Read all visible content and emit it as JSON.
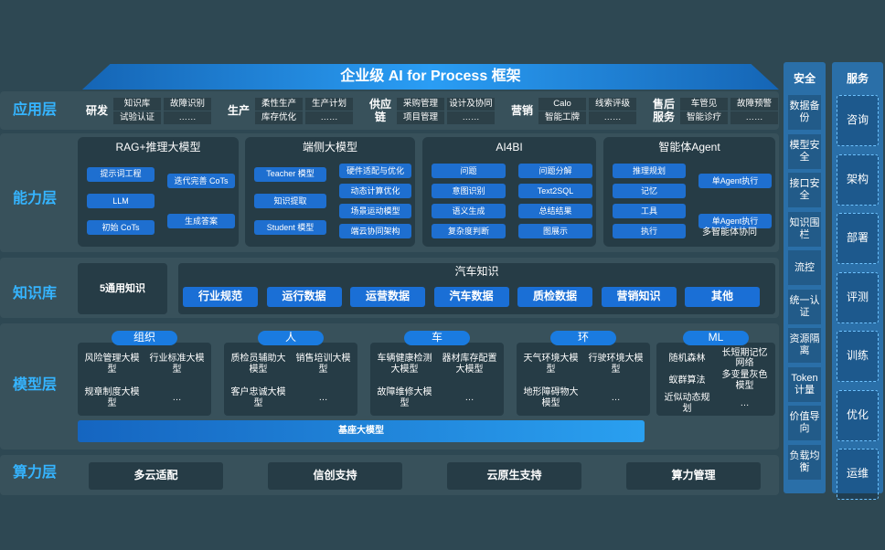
{
  "title": "企业级 AI for Process 框架",
  "layers": [
    "应用层",
    "能力层",
    "知识库",
    "模型层",
    "算力层"
  ],
  "application": [
    {
      "name": "研发",
      "items": [
        "知识库",
        "故障识别",
        "试验认证",
        "……"
      ]
    },
    {
      "name": "生产",
      "items": [
        "柔性生产",
        "生产计划",
        "库存优化",
        "……"
      ]
    },
    {
      "name": "供应链",
      "items": [
        "采购管理",
        "设计及协同",
        "项目管理",
        "……"
      ]
    },
    {
      "name": "营销",
      "items": [
        "Calo",
        "线索评级",
        "智能工牌",
        "……"
      ]
    },
    {
      "name": "售后服务",
      "items": [
        "车管见",
        "故障预警",
        "智能诊疗",
        "……"
      ]
    }
  ],
  "capability": [
    {
      "title": "RAG+推理大模型",
      "columns": [
        [
          "提示词工程",
          "LLM",
          "初始 CoTs"
        ],
        [
          "迭代完善 CoTs",
          "生成答案"
        ]
      ]
    },
    {
      "title": "端侧大模型",
      "columns": [
        [
          "Teacher 模型",
          "知识提取",
          "Student 模型"
        ],
        [
          "硬件适配与优化",
          "动态计算优化",
          "场景运动模型",
          "端云协同架构"
        ]
      ]
    },
    {
      "title": "AI4BI",
      "columns": [
        [
          "问题",
          "意图识别",
          "语义生成",
          "复杂度判断"
        ],
        [
          "问题分解",
          "Text2SQL",
          "总结结果",
          "图展示"
        ]
      ]
    },
    {
      "title": "智能体Agent",
      "columns": [
        [
          "推理规划",
          "记忆",
          "工具",
          "执行"
        ],
        [
          "单Agent执行",
          "单Agent执行"
        ]
      ],
      "footer": "多智能体协同"
    }
  ],
  "knowledge": {
    "general": "5通用知识",
    "auto_title": "汽车知识",
    "items": [
      "行业规范",
      "运行数据",
      "运营数据",
      "汽车数据",
      "质检数据",
      "营销知识",
      "其他"
    ]
  },
  "models": {
    "groups": [
      {
        "name": "组织",
        "items": [
          "风险管理大模型",
          "行业标准大模型",
          "规章制度大模型",
          "…"
        ]
      },
      {
        "name": "人",
        "items": [
          "质检员辅助大模型",
          "销售培训大模型",
          "客户忠诚大模型",
          "…"
        ]
      },
      {
        "name": "车",
        "items": [
          "车辆健康检测大模型",
          "器材库存配置大模型",
          "故障维修大模型",
          "…"
        ]
      },
      {
        "name": "环",
        "items": [
          "天气环境大模型",
          "行驶环境大模型",
          "地形障碍物大模型",
          "…"
        ]
      },
      {
        "name": "ML",
        "items": [
          "随机森林",
          "长短期记忆网络",
          "蚁群算法",
          "多变量灰色模型",
          "近似动态规划",
          "…"
        ]
      }
    ],
    "base": "基座大模型"
  },
  "compute": [
    "多云适配",
    "信创支持",
    "云原生支持",
    "算力管理"
  ],
  "security": {
    "title": "安全",
    "items": [
      "数据备份",
      "模型安全",
      "接口安全",
      "知识围栏",
      "流控",
      "统一认证",
      "资源隔离",
      "Token计量",
      "价值导向",
      "负载均衡"
    ]
  },
  "services": {
    "title": "服务",
    "items": [
      "咨询",
      "架构",
      "部署",
      "评测",
      "训练",
      "优化",
      "运维"
    ]
  }
}
